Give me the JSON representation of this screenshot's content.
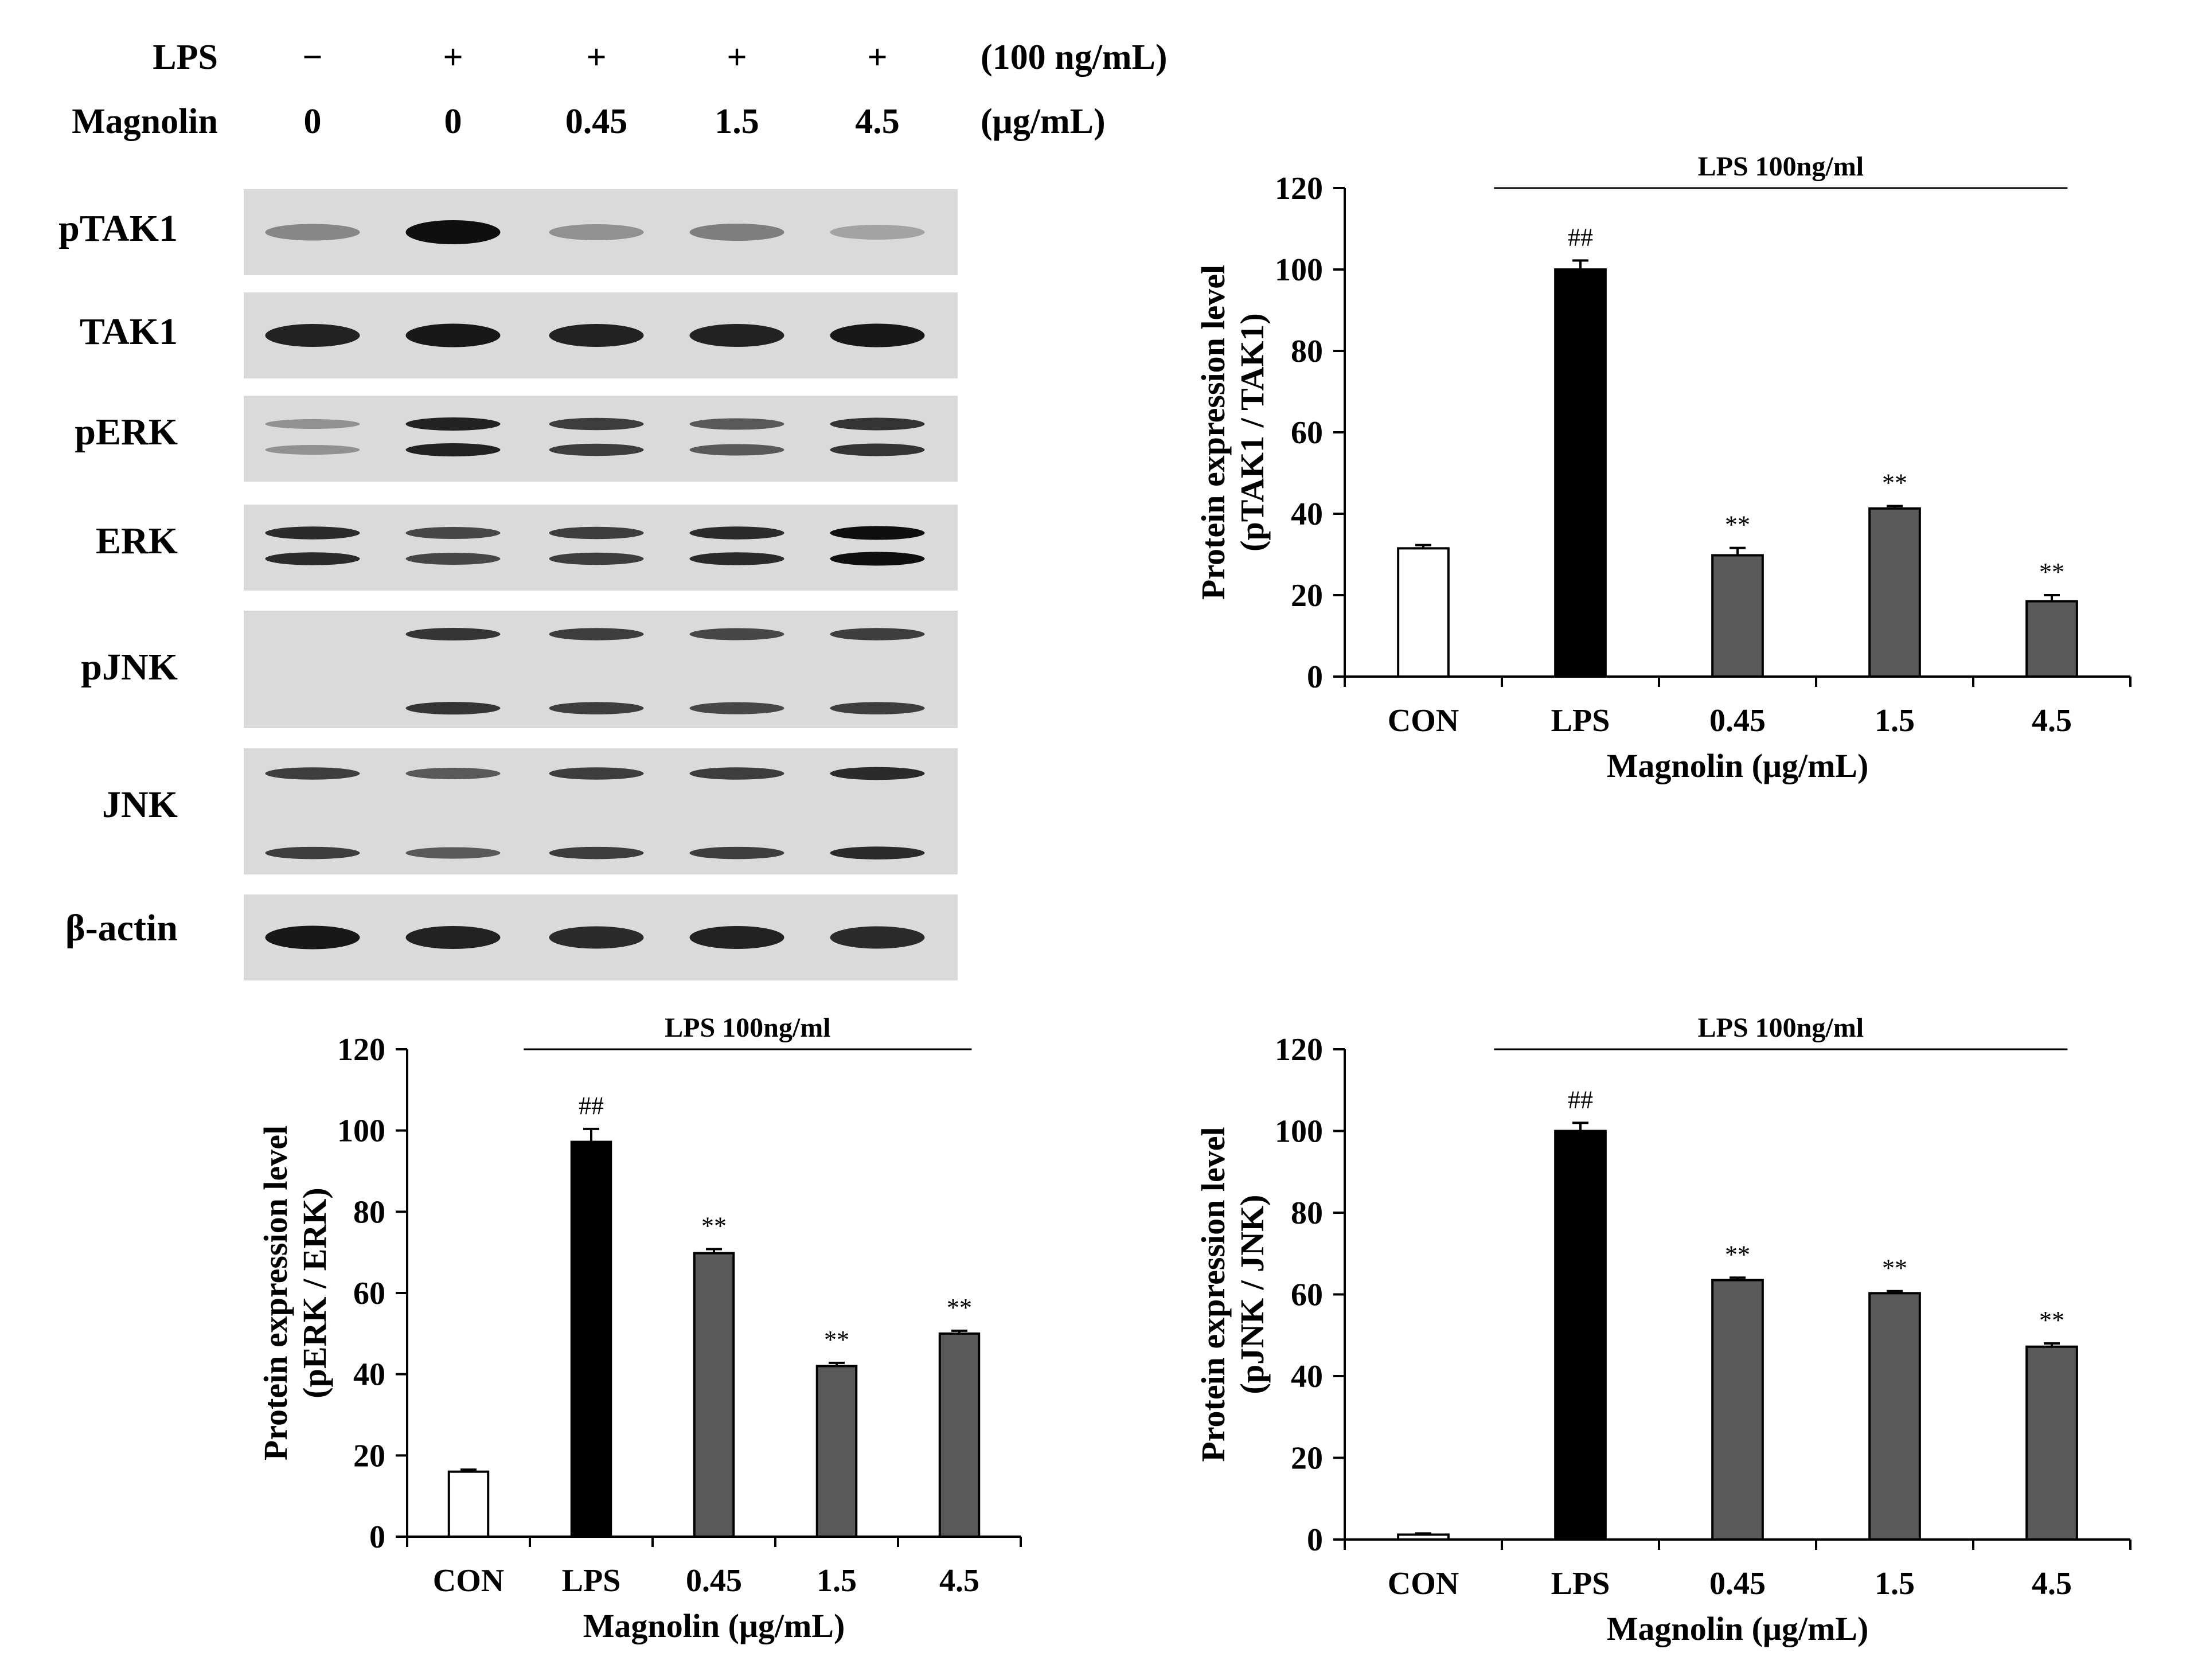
{
  "treatments": {
    "lps": {
      "label": "LPS",
      "levels": [
        "−",
        "+",
        "+",
        "+",
        "+"
      ],
      "unit": "(100 ng/mL)"
    },
    "magnolin": {
      "label": "Magnolin",
      "levels": [
        "0",
        "0",
        "0.45",
        "1.5",
        "4.5"
      ],
      "unit": "(μg/mL)"
    }
  },
  "blots": [
    {
      "label": "pTAK1",
      "band_intensity": [
        0.35,
        1.0,
        0.3,
        0.4,
        0.2
      ],
      "bands": 1
    },
    {
      "label": "TAK1",
      "band_intensity": [
        0.9,
        0.95,
        0.9,
        0.9,
        0.95
      ],
      "bands": 1
    },
    {
      "label": "pERK",
      "band_intensity": [
        0.3,
        0.9,
        0.75,
        0.6,
        0.8
      ],
      "bands": 2
    },
    {
      "label": "ERK",
      "band_intensity": [
        0.85,
        0.7,
        0.75,
        0.85,
        1.0
      ],
      "bands": 2
    },
    {
      "label": "pJNK",
      "band_intensity": [
        0.0,
        0.8,
        0.75,
        0.7,
        0.75
      ],
      "bands": 2
    },
    {
      "label": "JNK",
      "band_intensity": [
        0.75,
        0.6,
        0.75,
        0.75,
        0.85
      ],
      "bands": 2
    },
    {
      "label": "β-actin",
      "band_intensity": [
        0.95,
        0.9,
        0.85,
        0.9,
        0.85
      ],
      "bands": 1
    }
  ],
  "chart_data": [
    {
      "type": "bar",
      "categories": [
        "CON",
        "LPS",
        "0.45",
        "1.5",
        "4.5"
      ],
      "values": [
        31.5,
        100,
        29.8,
        41.3,
        18.5
      ],
      "errors": [
        0.8,
        2.2,
        1.8,
        0.6,
        1.5
      ],
      "annotations": [
        "",
        "##",
        "**",
        "**",
        "**"
      ],
      "bracket_label": "LPS 100ng/ml",
      "xlabel": "Magnolin (μg/mL)",
      "ylabel": [
        "Protein expression level",
        "(pTAK1 / TAK1)"
      ],
      "ylim": [
        0,
        120
      ],
      "yticks": [
        0,
        20,
        40,
        60,
        80,
        100,
        120
      ],
      "bar_colors": [
        "#ffffff",
        "#000000",
        "#595959",
        "#595959",
        "#595959"
      ]
    },
    {
      "type": "bar",
      "categories": [
        "CON",
        "LPS",
        "0.45",
        "1.5",
        "4.5"
      ],
      "values": [
        16,
        97.2,
        69.8,
        42,
        50
      ],
      "errors": [
        0.5,
        3.2,
        1.0,
        0.8,
        0.7
      ],
      "annotations": [
        "",
        "##",
        "**",
        "**",
        "**"
      ],
      "bracket_label": "LPS 100ng/ml",
      "xlabel": "Magnolin (μg/mL)",
      "ylabel": [
        "Protein expression level",
        "(pERK / ERK)"
      ],
      "ylim": [
        0,
        120
      ],
      "yticks": [
        0,
        20,
        40,
        60,
        80,
        100,
        120
      ],
      "bar_colors": [
        "#ffffff",
        "#000000",
        "#595959",
        "#595959",
        "#595959"
      ]
    },
    {
      "type": "bar",
      "categories": [
        "CON",
        "LPS",
        "0.45",
        "1.5",
        "4.5"
      ],
      "values": [
        1.2,
        100,
        63.5,
        60.3,
        47.2
      ],
      "errors": [
        0.3,
        2.0,
        0.6,
        0.5,
        0.8
      ],
      "annotations": [
        "",
        "##",
        "**",
        "**",
        "**"
      ],
      "bracket_label": "LPS 100ng/ml",
      "xlabel": "Magnolin (μg/mL)",
      "ylabel": [
        "Protein expression level",
        "(pJNK / JNK)"
      ],
      "ylim": [
        0,
        120
      ],
      "yticks": [
        0,
        20,
        40,
        60,
        80,
        100,
        120
      ],
      "bar_colors": [
        "#ffffff",
        "#000000",
        "#595959",
        "#595959",
        "#595959"
      ]
    }
  ]
}
